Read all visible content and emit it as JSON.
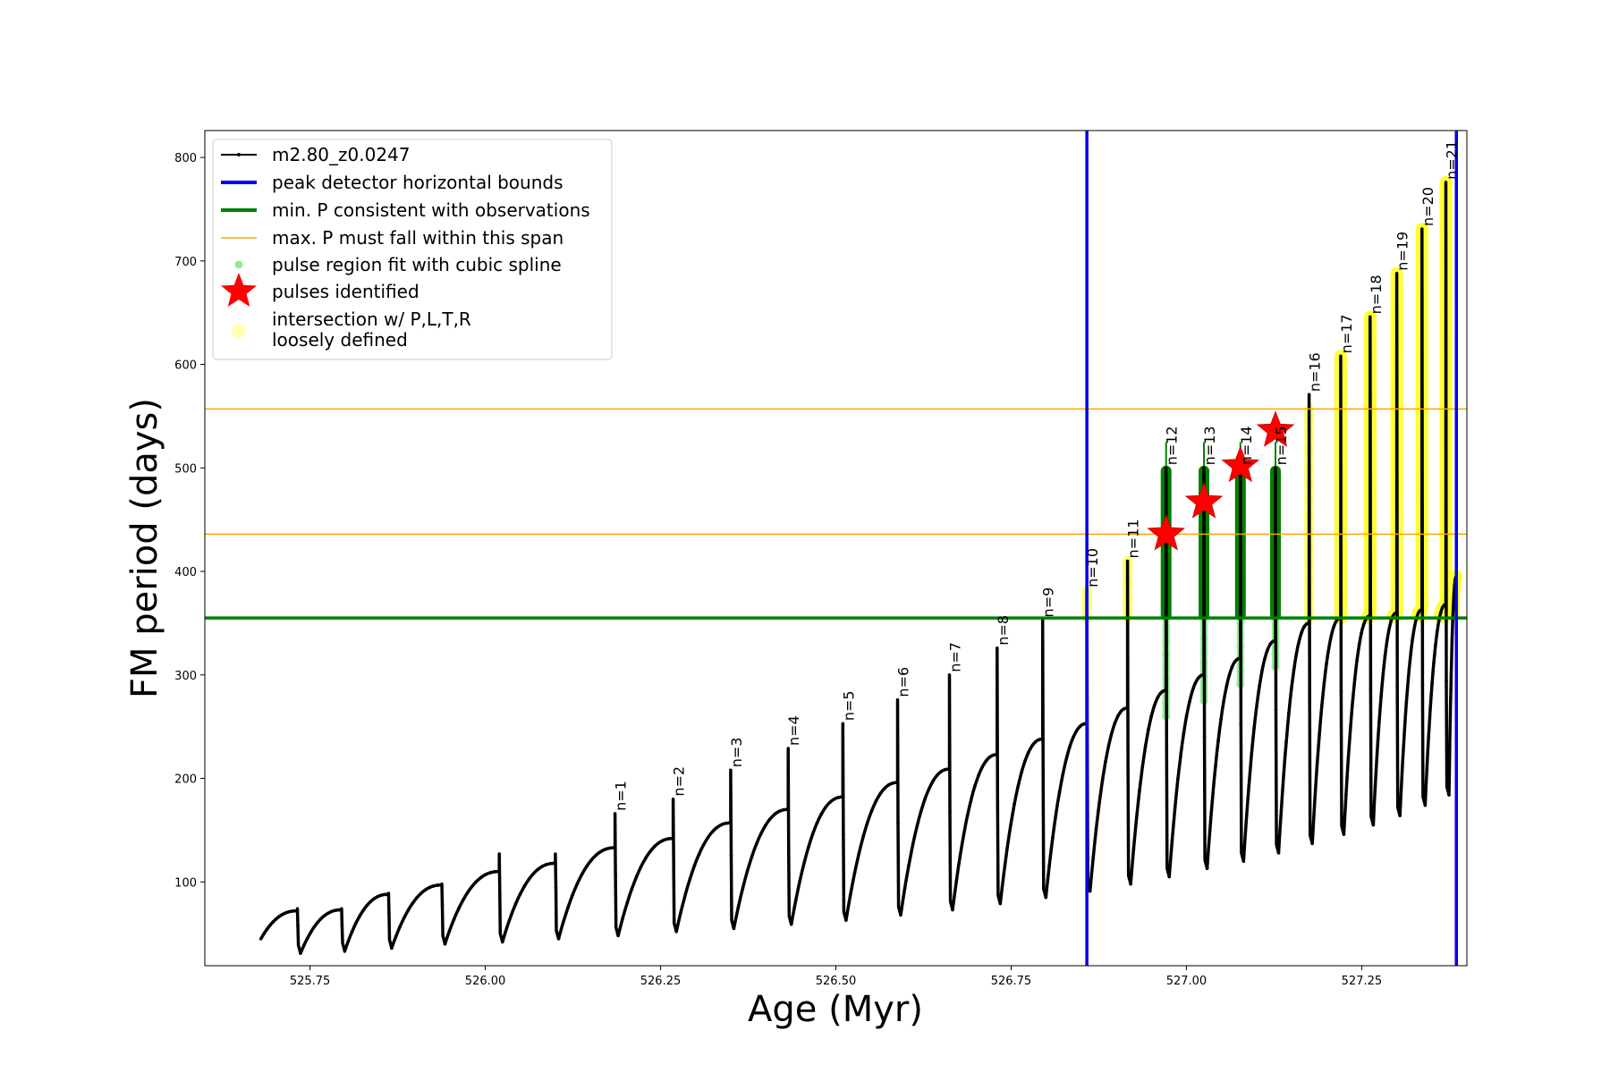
{
  "chart_data": {
    "type": "line",
    "xlabel": "Age (Myr)",
    "ylabel": "FM period (days)",
    "xlim": [
      525.6,
      527.4
    ],
    "ylim": [
      19,
      826
    ],
    "xticks": [
      525.75,
      526.0,
      526.25,
      526.5,
      526.75,
      527.0,
      527.25
    ],
    "xtick_labels": [
      "525.75",
      "526.00",
      "526.25",
      "526.50",
      "526.75",
      "527.00",
      "527.25"
    ],
    "yticks": [
      100,
      200,
      300,
      400,
      500,
      600,
      700,
      800
    ],
    "ytick_labels": [
      "100",
      "200",
      "300",
      "400",
      "500",
      "600",
      "700",
      "800"
    ],
    "series_name": "m2.80_z0.0247",
    "series_color": "#000000",
    "track_start": [
      525.68,
      45
    ],
    "track_end": [
      527.385,
      395
    ],
    "pulses": [
      {
        "label": "n=1",
        "age": 526.185,
        "peak": 166,
        "pre": 133,
        "min": 48
      },
      {
        "label": "n=2",
        "age": 526.268,
        "peak": 180,
        "pre": 142,
        "min": 52
      },
      {
        "label": "n=3",
        "age": 526.35,
        "peak": 208,
        "pre": 157,
        "min": 55
      },
      {
        "label": "n=4",
        "age": 526.432,
        "peak": 229,
        "pre": 170,
        "min": 59
      },
      {
        "label": "n=5",
        "age": 526.51,
        "peak": 253,
        "pre": 182,
        "min": 63
      },
      {
        "label": "n=6",
        "age": 526.588,
        "peak": 276,
        "pre": 196,
        "min": 68
      },
      {
        "label": "n=7",
        "age": 526.662,
        "peak": 300,
        "pre": 209,
        "min": 73
      },
      {
        "label": "n=8",
        "age": 526.73,
        "peak": 326,
        "pre": 223,
        "min": 79
      },
      {
        "label": "n=9",
        "age": 526.795,
        "peak": 353,
        "pre": 238,
        "min": 85
      },
      {
        "label": "n=10",
        "age": 526.858,
        "peak": 382,
        "pre": 253,
        "min": 91
      },
      {
        "label": "n=11",
        "age": 526.916,
        "peak": 410,
        "pre": 268,
        "min": 98
      },
      {
        "label": "n=12",
        "age": 526.971,
        "peak": 500,
        "pre": 285,
        "min": 105
      },
      {
        "label": "n=13",
        "age": 527.025,
        "peak": 500,
        "pre": 300,
        "min": 113
      },
      {
        "label": "n=14",
        "age": 527.077,
        "peak": 500,
        "pre": 316,
        "min": 120
      },
      {
        "label": "n=15",
        "age": 527.127,
        "peak": 500,
        "pre": 333,
        "min": 128
      },
      {
        "label": "n=16",
        "age": 527.175,
        "peak": 571,
        "pre": 350,
        "min": 137
      },
      {
        "label": "n=17",
        "age": 527.22,
        "peak": 608,
        "pre": 355,
        "min": 146
      },
      {
        "label": "n=18",
        "age": 527.262,
        "peak": 646,
        "pre": 357,
        "min": 155
      },
      {
        "label": "n=19",
        "age": 527.3,
        "peak": 688,
        "pre": 360,
        "min": 164
      },
      {
        "label": "n=20",
        "age": 527.336,
        "peak": 731,
        "pre": 363,
        "min": 174
      },
      {
        "label": "n=21",
        "age": 527.37,
        "peak": 776,
        "pre": 368,
        "min": 184
      }
    ],
    "early_cycles": [
      {
        "age": 525.732,
        "pre": 72,
        "peak": 74,
        "min": 31
      },
      {
        "age": 525.795,
        "pre": 73,
        "peak": 74,
        "min": 33
      },
      {
        "age": 525.862,
        "pre": 88,
        "peak": 89,
        "min": 36
      },
      {
        "age": 525.938,
        "pre": 97,
        "peak": 98,
        "min": 40
      },
      {
        "age": 526.02,
        "pre": 110,
        "peak": 127,
        "min": 42
      },
      {
        "age": 526.1,
        "pre": 118,
        "peak": 127,
        "min": 45
      }
    ],
    "peak_detector_bounds": [
      526.858,
      527.385
    ],
    "min_period_observed": 355,
    "max_period_span": [
      436,
      557
    ],
    "pulse_fit_ages": [
      526.971,
      527.025,
      527.077,
      527.127
    ],
    "pulses_identified": [
      {
        "age": 526.971,
        "period": 436
      },
      {
        "age": 527.025,
        "period": 467
      },
      {
        "age": 527.077,
        "period": 502
      },
      {
        "age": 527.127,
        "period": 536
      }
    ],
    "loosely_defined_ages": [
      526.858,
      526.916,
      527.175,
      527.22,
      527.262,
      527.3,
      527.336,
      527.37
    ],
    "legend": {
      "position": "upper left",
      "entries": [
        {
          "marker": "line-dot",
          "color": "#000000",
          "text": "m2.80_z0.0247"
        },
        {
          "marker": "line",
          "color": "#0000ee",
          "text": "peak detector horizontal bounds"
        },
        {
          "marker": "line",
          "color": "#008000",
          "text": "min. P consistent with observations"
        },
        {
          "marker": "thin-line",
          "color": "#ffa500",
          "text": "max. P must fall within this span"
        },
        {
          "marker": "dot",
          "color": "#90ee90",
          "text": "pulse region fit with cubic spline"
        },
        {
          "marker": "star",
          "color": "#ff0000",
          "text": "pulses identified"
        },
        {
          "marker": "circle",
          "color": "#ffff99",
          "text": "intersection w/ P,L,T,R",
          "text2": "loosely defined"
        }
      ]
    }
  }
}
